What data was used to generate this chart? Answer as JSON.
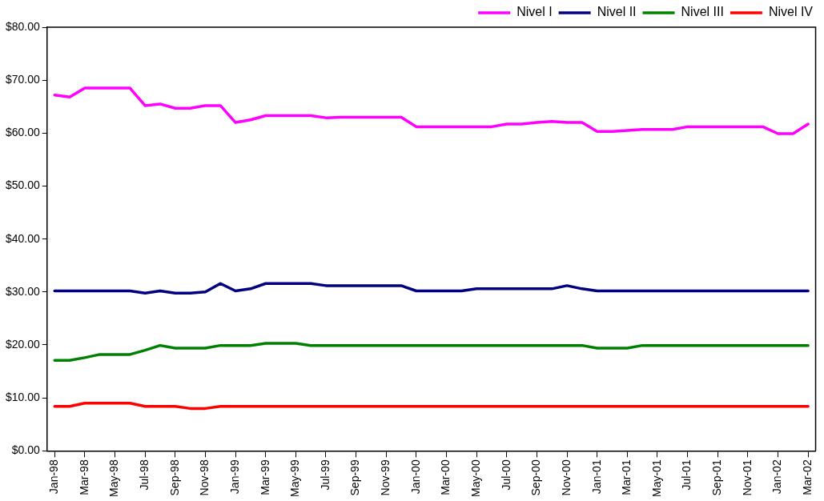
{
  "chart_data": {
    "type": "line",
    "categories": [
      "Jan-98",
      null,
      "Mar-98",
      null,
      "May-98",
      null,
      "Jul-98",
      null,
      "Sep-98",
      null,
      "Nov-98",
      null,
      "Jan-99",
      null,
      "Mar-99",
      null,
      "May-99",
      null,
      "Jul-99",
      null,
      "Sep-99",
      null,
      "Nov-99",
      null,
      "Jan-00",
      null,
      "Mar-00",
      null,
      "May-00",
      null,
      "Jul-00",
      null,
      "Sep-00",
      null,
      "Nov-00",
      null,
      "Jan-01",
      null,
      "Mar-01",
      null,
      "May-01",
      null,
      "Jul-01",
      null,
      "Sep-01",
      null,
      "Nov-01",
      null,
      "Jan-02",
      null,
      "Mar-02"
    ],
    "series": [
      {
        "name": "Nivel I",
        "color": "#ff00ff",
        "values": [
          67.2,
          66.8,
          68.5,
          68.5,
          68.5,
          68.5,
          65.2,
          65.5,
          64.7,
          64.7,
          65.2,
          65.2,
          62.0,
          62.5,
          63.3,
          63.3,
          63.3,
          63.3,
          62.9,
          63.0,
          63.0,
          63.0,
          63.0,
          63.0,
          61.2,
          61.2,
          61.2,
          61.2,
          61.2,
          61.2,
          61.7,
          61.7,
          62.0,
          62.2,
          62.0,
          62.0,
          60.3,
          60.3,
          60.5,
          60.7,
          60.7,
          60.7,
          61.2,
          61.2,
          61.2,
          61.2,
          61.2,
          61.2,
          59.9,
          59.9,
          61.7
        ]
      },
      {
        "name": "Nivel II",
        "color": "#000080",
        "values": [
          30.2,
          30.2,
          30.2,
          30.2,
          30.2,
          30.2,
          29.8,
          30.2,
          29.8,
          29.8,
          30.0,
          31.6,
          30.2,
          30.6,
          31.6,
          31.6,
          31.6,
          31.6,
          31.2,
          31.2,
          31.2,
          31.2,
          31.2,
          31.2,
          30.2,
          30.2,
          30.2,
          30.2,
          30.6,
          30.6,
          30.6,
          30.6,
          30.6,
          30.6,
          31.2,
          30.6,
          30.2,
          30.2,
          30.2,
          30.2,
          30.2,
          30.2,
          30.2,
          30.2,
          30.2,
          30.2,
          30.2,
          30.2,
          30.2,
          30.2,
          30.2
        ]
      },
      {
        "name": "Nivel III",
        "color": "#008000",
        "values": [
          17.1,
          17.1,
          17.6,
          18.2,
          18.2,
          18.2,
          19.0,
          19.9,
          19.4,
          19.4,
          19.4,
          19.9,
          19.9,
          19.9,
          20.3,
          20.3,
          20.3,
          19.9,
          19.9,
          19.9,
          19.9,
          19.9,
          19.9,
          19.9,
          19.9,
          19.9,
          19.9,
          19.9,
          19.9,
          19.9,
          19.9,
          19.9,
          19.9,
          19.9,
          19.9,
          19.9,
          19.4,
          19.4,
          19.4,
          19.9,
          19.9,
          19.9,
          19.9,
          19.9,
          19.9,
          19.9,
          19.9,
          19.9,
          19.9,
          19.9,
          19.9
        ]
      },
      {
        "name": "Nivel IV",
        "color": "#ff0000",
        "values": [
          8.4,
          8.4,
          9.0,
          9.0,
          9.0,
          9.0,
          8.4,
          8.4,
          8.4,
          8.0,
          8.0,
          8.4,
          8.4,
          8.4,
          8.4,
          8.4,
          8.4,
          8.4,
          8.4,
          8.4,
          8.4,
          8.4,
          8.4,
          8.4,
          8.4,
          8.4,
          8.4,
          8.4,
          8.4,
          8.4,
          8.4,
          8.4,
          8.4,
          8.4,
          8.4,
          8.4,
          8.4,
          8.4,
          8.4,
          8.4,
          8.4,
          8.4,
          8.4,
          8.4,
          8.4,
          8.4,
          8.4,
          8.4,
          8.4,
          8.4,
          8.4
        ]
      }
    ],
    "ylim": [
      0,
      80
    ],
    "yticks": [
      {
        "value": 0,
        "label": "$0.00"
      },
      {
        "value": 10,
        "label": "$10.00"
      },
      {
        "value": 20,
        "label": "$20.00"
      },
      {
        "value": 30,
        "label": "$30.00"
      },
      {
        "value": 40,
        "label": "$40.00"
      },
      {
        "value": 50,
        "label": "$50.00"
      },
      {
        "value": 60,
        "label": "$60.00"
      },
      {
        "value": 70,
        "label": "$70.00"
      },
      {
        "value": 80,
        "label": "$80.00"
      }
    ],
    "grid": false,
    "legend": "top right",
    "marker": "none",
    "line_style": "solid"
  }
}
